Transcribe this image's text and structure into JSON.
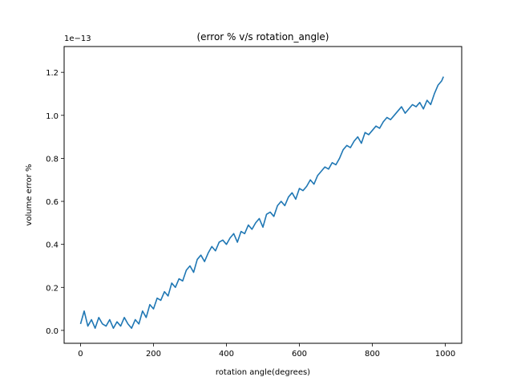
{
  "chart_data": {
    "type": "line",
    "title": "(error % v/s rotation_angle)",
    "xlabel": "rotation angle(degrees)",
    "ylabel": "volume error %",
    "y_offset_text": "1e−13",
    "y_scale_exponent": -13,
    "xlim": [
      -45,
      1045
    ],
    "ylim": [
      -0.06,
      1.32
    ],
    "x_ticks": [
      0,
      200,
      400,
      600,
      800,
      1000
    ],
    "x_tick_labels": [
      "0",
      "200",
      "400",
      "600",
      "800",
      "1000"
    ],
    "y_ticks": [
      0.0,
      0.2,
      0.4,
      0.6,
      0.8,
      1.0,
      1.2
    ],
    "y_tick_labels": [
      "0.0",
      "0.2",
      "0.4",
      "0.6",
      "0.8",
      "1.0",
      "1.2"
    ],
    "grid": false,
    "series": [
      {
        "color": "#1f77b4",
        "x": [
          0,
          10,
          20,
          30,
          40,
          50,
          60,
          70,
          80,
          90,
          100,
          110,
          120,
          130,
          140,
          150,
          160,
          170,
          180,
          190,
          200,
          210,
          220,
          230,
          240,
          250,
          260,
          270,
          280,
          290,
          300,
          310,
          320,
          330,
          340,
          350,
          360,
          370,
          380,
          390,
          400,
          410,
          420,
          430,
          440,
          450,
          460,
          470,
          480,
          490,
          500,
          510,
          520,
          530,
          540,
          550,
          560,
          570,
          580,
          590,
          600,
          610,
          620,
          630,
          640,
          650,
          660,
          670,
          680,
          690,
          700,
          710,
          720,
          730,
          740,
          750,
          760,
          770,
          780,
          790,
          800,
          810,
          820,
          830,
          840,
          850,
          860,
          870,
          880,
          890,
          900,
          910,
          920,
          930,
          940,
          950,
          960,
          970,
          980,
          990,
          995
        ],
        "y": [
          0.03,
          0.09,
          0.02,
          0.05,
          0.01,
          0.06,
          0.03,
          0.02,
          0.05,
          0.01,
          0.04,
          0.02,
          0.06,
          0.03,
          0.01,
          0.05,
          0.03,
          0.09,
          0.06,
          0.12,
          0.1,
          0.15,
          0.14,
          0.18,
          0.16,
          0.22,
          0.2,
          0.24,
          0.23,
          0.28,
          0.3,
          0.27,
          0.33,
          0.35,
          0.32,
          0.36,
          0.39,
          0.37,
          0.41,
          0.42,
          0.4,
          0.43,
          0.45,
          0.41,
          0.46,
          0.45,
          0.49,
          0.47,
          0.5,
          0.52,
          0.48,
          0.54,
          0.55,
          0.53,
          0.58,
          0.6,
          0.58,
          0.62,
          0.64,
          0.61,
          0.66,
          0.65,
          0.67,
          0.7,
          0.68,
          0.72,
          0.74,
          0.76,
          0.75,
          0.78,
          0.77,
          0.8,
          0.84,
          0.86,
          0.85,
          0.88,
          0.9,
          0.87,
          0.92,
          0.91,
          0.93,
          0.95,
          0.94,
          0.97,
          0.99,
          0.98,
          1.0,
          1.02,
          1.04,
          1.01,
          1.03,
          1.05,
          1.04,
          1.06,
          1.03,
          1.07,
          1.05,
          1.1,
          1.14,
          1.16,
          1.18
        ]
      }
    ]
  }
}
